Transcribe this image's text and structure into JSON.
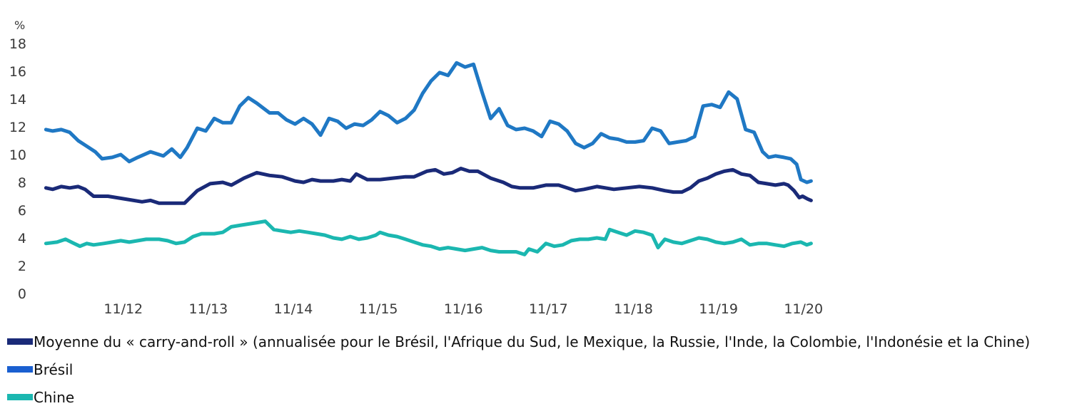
{
  "chart_data": {
    "type": "line",
    "unit_label": "%",
    "ylim": [
      0,
      18
    ],
    "y_ticks": [
      0,
      2,
      4,
      6,
      8,
      10,
      12,
      14,
      16,
      18
    ],
    "x_tick_labels": [
      "11/12",
      "11/13",
      "11/14",
      "11/15",
      "11/16",
      "11/17",
      "11/18",
      "11/19",
      "11/20"
    ],
    "x_tick_values": [
      2012.83,
      2013.83,
      2014.83,
      2015.83,
      2016.83,
      2017.83,
      2018.83,
      2019.83,
      2020.83
    ],
    "xlim": [
      2011.9,
      2020.95
    ],
    "grid": false,
    "legend_position": "bottom",
    "series": [
      {
        "name": "Moyenne du « carry-and-roll » (annualisée pour le Brésil, l'Afrique du Sud, le Mexique, la Russie, l'Inde, la Colombie, l'Indonésie et la Chine)",
        "color": "#1a2a78",
        "points": [
          [
            2011.92,
            7.6
          ],
          [
            2012.0,
            7.5
          ],
          [
            2012.1,
            7.7
          ],
          [
            2012.2,
            7.6
          ],
          [
            2012.3,
            7.7
          ],
          [
            2012.38,
            7.5
          ],
          [
            2012.48,
            7.0
          ],
          [
            2012.65,
            7.0
          ],
          [
            2012.85,
            6.8
          ],
          [
            2013.05,
            6.6
          ],
          [
            2013.15,
            6.7
          ],
          [
            2013.25,
            6.5
          ],
          [
            2013.4,
            6.5
          ],
          [
            2013.55,
            6.5
          ],
          [
            2013.7,
            7.4
          ],
          [
            2013.85,
            7.9
          ],
          [
            2014.0,
            8.0
          ],
          [
            2014.1,
            7.8
          ],
          [
            2014.25,
            8.3
          ],
          [
            2014.4,
            8.7
          ],
          [
            2014.55,
            8.5
          ],
          [
            2014.7,
            8.4
          ],
          [
            2014.85,
            8.1
          ],
          [
            2014.95,
            8.0
          ],
          [
            2015.05,
            8.2
          ],
          [
            2015.15,
            8.1
          ],
          [
            2015.3,
            8.1
          ],
          [
            2015.4,
            8.2
          ],
          [
            2015.5,
            8.1
          ],
          [
            2015.57,
            8.6
          ],
          [
            2015.7,
            8.2
          ],
          [
            2015.85,
            8.2
          ],
          [
            2016.0,
            8.3
          ],
          [
            2016.15,
            8.4
          ],
          [
            2016.25,
            8.4
          ],
          [
            2016.4,
            8.8
          ],
          [
            2016.5,
            8.9
          ],
          [
            2016.6,
            8.6
          ],
          [
            2016.7,
            8.7
          ],
          [
            2016.8,
            9.0
          ],
          [
            2016.9,
            8.8
          ],
          [
            2017.0,
            8.8
          ],
          [
            2017.15,
            8.3
          ],
          [
            2017.3,
            8.0
          ],
          [
            2017.4,
            7.7
          ],
          [
            2017.5,
            7.6
          ],
          [
            2017.65,
            7.6
          ],
          [
            2017.8,
            7.8
          ],
          [
            2017.95,
            7.8
          ],
          [
            2018.05,
            7.6
          ],
          [
            2018.15,
            7.4
          ],
          [
            2018.25,
            7.5
          ],
          [
            2018.4,
            7.7
          ],
          [
            2018.5,
            7.6
          ],
          [
            2018.6,
            7.5
          ],
          [
            2018.75,
            7.6
          ],
          [
            2018.9,
            7.7
          ],
          [
            2019.05,
            7.6
          ],
          [
            2019.2,
            7.4
          ],
          [
            2019.3,
            7.3
          ],
          [
            2019.4,
            7.3
          ],
          [
            2019.5,
            7.6
          ],
          [
            2019.6,
            8.1
          ],
          [
            2019.7,
            8.3
          ],
          [
            2019.8,
            8.6
          ],
          [
            2019.9,
            8.8
          ],
          [
            2020.0,
            8.9
          ],
          [
            2020.1,
            8.6
          ],
          [
            2020.2,
            8.5
          ],
          [
            2020.3,
            8.0
          ],
          [
            2020.4,
            7.9
          ],
          [
            2020.5,
            7.8
          ],
          [
            2020.6,
            7.9
          ],
          [
            2020.65,
            7.8
          ],
          [
            2020.72,
            7.4
          ],
          [
            2020.78,
            6.9
          ],
          [
            2020.82,
            7.0
          ],
          [
            2020.88,
            6.8
          ],
          [
            2020.92,
            6.7
          ]
        ]
      },
      {
        "name": "Brésil",
        "color": "#1f78c4",
        "points": [
          [
            2011.92,
            11.8
          ],
          [
            2012.0,
            11.7
          ],
          [
            2012.1,
            11.8
          ],
          [
            2012.2,
            11.6
          ],
          [
            2012.3,
            11.0
          ],
          [
            2012.4,
            10.6
          ],
          [
            2012.5,
            10.2
          ],
          [
            2012.58,
            9.7
          ],
          [
            2012.7,
            9.8
          ],
          [
            2012.8,
            10.0
          ],
          [
            2012.9,
            9.5
          ],
          [
            2013.0,
            9.8
          ],
          [
            2013.15,
            10.2
          ],
          [
            2013.3,
            9.9
          ],
          [
            2013.4,
            10.4
          ],
          [
            2013.5,
            9.8
          ],
          [
            2013.58,
            10.5
          ],
          [
            2013.7,
            11.9
          ],
          [
            2013.8,
            11.7
          ],
          [
            2013.9,
            12.6
          ],
          [
            2014.0,
            12.3
          ],
          [
            2014.1,
            12.3
          ],
          [
            2014.2,
            13.5
          ],
          [
            2014.3,
            14.1
          ],
          [
            2014.4,
            13.7
          ],
          [
            2014.55,
            13.0
          ],
          [
            2014.65,
            13.0
          ],
          [
            2014.75,
            12.5
          ],
          [
            2014.85,
            12.2
          ],
          [
            2014.95,
            12.6
          ],
          [
            2015.05,
            12.2
          ],
          [
            2015.15,
            11.4
          ],
          [
            2015.25,
            12.6
          ],
          [
            2015.35,
            12.4
          ],
          [
            2015.45,
            11.9
          ],
          [
            2015.55,
            12.2
          ],
          [
            2015.65,
            12.1
          ],
          [
            2015.75,
            12.5
          ],
          [
            2015.85,
            13.1
          ],
          [
            2015.95,
            12.8
          ],
          [
            2016.05,
            12.3
          ],
          [
            2016.15,
            12.6
          ],
          [
            2016.25,
            13.2
          ],
          [
            2016.35,
            14.4
          ],
          [
            2016.45,
            15.3
          ],
          [
            2016.55,
            15.9
          ],
          [
            2016.65,
            15.7
          ],
          [
            2016.75,
            16.6
          ],
          [
            2016.85,
            16.3
          ],
          [
            2016.95,
            16.5
          ],
          [
            2017.05,
            14.5
          ],
          [
            2017.15,
            12.6
          ],
          [
            2017.25,
            13.3
          ],
          [
            2017.35,
            12.1
          ],
          [
            2017.45,
            11.8
          ],
          [
            2017.55,
            11.9
          ],
          [
            2017.65,
            11.7
          ],
          [
            2017.75,
            11.3
          ],
          [
            2017.85,
            12.4
          ],
          [
            2017.95,
            12.2
          ],
          [
            2018.05,
            11.7
          ],
          [
            2018.15,
            10.8
          ],
          [
            2018.25,
            10.5
          ],
          [
            2018.35,
            10.8
          ],
          [
            2018.45,
            11.5
          ],
          [
            2018.55,
            11.2
          ],
          [
            2018.65,
            11.1
          ],
          [
            2018.75,
            10.9
          ],
          [
            2018.85,
            10.9
          ],
          [
            2018.95,
            11.0
          ],
          [
            2019.05,
            11.9
          ],
          [
            2019.15,
            11.7
          ],
          [
            2019.25,
            10.8
          ],
          [
            2019.35,
            10.9
          ],
          [
            2019.45,
            11.0
          ],
          [
            2019.55,
            11.3
          ],
          [
            2019.65,
            13.5
          ],
          [
            2019.75,
            13.6
          ],
          [
            2019.85,
            13.4
          ],
          [
            2019.95,
            14.5
          ],
          [
            2020.05,
            14.0
          ],
          [
            2020.15,
            11.8
          ],
          [
            2020.25,
            11.6
          ],
          [
            2020.35,
            10.2
          ],
          [
            2020.42,
            9.8
          ],
          [
            2020.5,
            9.9
          ],
          [
            2020.6,
            9.8
          ],
          [
            2020.68,
            9.7
          ],
          [
            2020.75,
            9.3
          ],
          [
            2020.8,
            8.2
          ],
          [
            2020.87,
            8.0
          ],
          [
            2020.92,
            8.1
          ]
        ]
      },
      {
        "name": "Chine",
        "color": "#1bb7b0",
        "points": [
          [
            2011.92,
            3.6
          ],
          [
            2012.05,
            3.7
          ],
          [
            2012.15,
            3.9
          ],
          [
            2012.25,
            3.6
          ],
          [
            2012.32,
            3.4
          ],
          [
            2012.4,
            3.6
          ],
          [
            2012.48,
            3.5
          ],
          [
            2012.6,
            3.6
          ],
          [
            2012.7,
            3.7
          ],
          [
            2012.8,
            3.8
          ],
          [
            2012.9,
            3.7
          ],
          [
            2013.0,
            3.8
          ],
          [
            2013.1,
            3.9
          ],
          [
            2013.25,
            3.9
          ],
          [
            2013.35,
            3.8
          ],
          [
            2013.45,
            3.6
          ],
          [
            2013.55,
            3.7
          ],
          [
            2013.65,
            4.1
          ],
          [
            2013.75,
            4.3
          ],
          [
            2013.9,
            4.3
          ],
          [
            2014.0,
            4.4
          ],
          [
            2014.1,
            4.8
          ],
          [
            2014.2,
            4.9
          ],
          [
            2014.3,
            5.0
          ],
          [
            2014.4,
            5.1
          ],
          [
            2014.5,
            5.2
          ],
          [
            2014.6,
            4.6
          ],
          [
            2014.7,
            4.5
          ],
          [
            2014.8,
            4.4
          ],
          [
            2014.9,
            4.5
          ],
          [
            2015.0,
            4.4
          ],
          [
            2015.1,
            4.3
          ],
          [
            2015.2,
            4.2
          ],
          [
            2015.3,
            4.0
          ],
          [
            2015.4,
            3.9
          ],
          [
            2015.5,
            4.1
          ],
          [
            2015.6,
            3.9
          ],
          [
            2015.7,
            4.0
          ],
          [
            2015.8,
            4.2
          ],
          [
            2015.85,
            4.4
          ],
          [
            2015.95,
            4.2
          ],
          [
            2016.05,
            4.1
          ],
          [
            2016.15,
            3.9
          ],
          [
            2016.25,
            3.7
          ],
          [
            2016.35,
            3.5
          ],
          [
            2016.45,
            3.4
          ],
          [
            2016.55,
            3.2
          ],
          [
            2016.65,
            3.3
          ],
          [
            2016.75,
            3.2
          ],
          [
            2016.85,
            3.1
          ],
          [
            2016.95,
            3.2
          ],
          [
            2017.05,
            3.3
          ],
          [
            2017.15,
            3.1
          ],
          [
            2017.25,
            3.0
          ],
          [
            2017.35,
            3.0
          ],
          [
            2017.45,
            3.0
          ],
          [
            2017.55,
            2.8
          ],
          [
            2017.6,
            3.2
          ],
          [
            2017.7,
            3.0
          ],
          [
            2017.8,
            3.6
          ],
          [
            2017.9,
            3.4
          ],
          [
            2018.0,
            3.5
          ],
          [
            2018.1,
            3.8
          ],
          [
            2018.2,
            3.9
          ],
          [
            2018.3,
            3.9
          ],
          [
            2018.4,
            4.0
          ],
          [
            2018.5,
            3.9
          ],
          [
            2018.55,
            4.6
          ],
          [
            2018.65,
            4.4
          ],
          [
            2018.75,
            4.2
          ],
          [
            2018.85,
            4.5
          ],
          [
            2018.95,
            4.4
          ],
          [
            2019.05,
            4.2
          ],
          [
            2019.12,
            3.3
          ],
          [
            2019.2,
            3.9
          ],
          [
            2019.3,
            3.7
          ],
          [
            2019.4,
            3.6
          ],
          [
            2019.5,
            3.8
          ],
          [
            2019.6,
            4.0
          ],
          [
            2019.7,
            3.9
          ],
          [
            2019.8,
            3.7
          ],
          [
            2019.9,
            3.6
          ],
          [
            2020.0,
            3.7
          ],
          [
            2020.1,
            3.9
          ],
          [
            2020.2,
            3.5
          ],
          [
            2020.3,
            3.6
          ],
          [
            2020.4,
            3.6
          ],
          [
            2020.5,
            3.5
          ],
          [
            2020.6,
            3.4
          ],
          [
            2020.7,
            3.6
          ],
          [
            2020.8,
            3.7
          ],
          [
            2020.87,
            3.5
          ],
          [
            2020.92,
            3.6
          ]
        ]
      }
    ]
  }
}
